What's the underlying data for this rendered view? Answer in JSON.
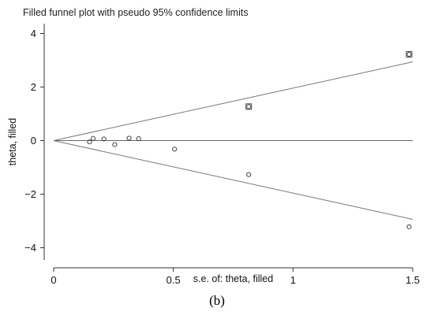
{
  "chart_data": {
    "type": "scatter",
    "title": "Filled funnel plot with pseudo 95% confidence limits",
    "xlabel": "s.e. of: theta, filled",
    "ylabel": "theta, filled",
    "panel_label": "(b)",
    "xlim": [
      0,
      1.5
    ],
    "ylim": [
      -4.2,
      4.2
    ],
    "x_ticks": [
      0,
      0.5,
      1,
      1.5
    ],
    "x_tick_labels": [
      "0",
      "0.5",
      "1",
      "1.5"
    ],
    "y_ticks": [
      -4,
      -2,
      0,
      2,
      4
    ],
    "y_tick_labels": [
      "−4",
      "−2",
      "0",
      "2",
      "4"
    ],
    "pooled_estimate": 0,
    "confidence_limit_multiplier": 1.96,
    "series": [
      {
        "marker": "circle",
        "points": [
          {
            "x": 0.15,
            "y": -0.05
          },
          {
            "x": 0.165,
            "y": 0.08
          },
          {
            "x": 0.21,
            "y": 0.06
          },
          {
            "x": 0.255,
            "y": -0.15
          },
          {
            "x": 0.315,
            "y": 0.09
          },
          {
            "x": 0.355,
            "y": 0.07
          },
          {
            "x": 0.505,
            "y": -0.32
          },
          {
            "x": 0.815,
            "y": -1.27
          },
          {
            "x": 1.485,
            "y": -3.22
          }
        ]
      },
      {
        "marker": "circle-in-square",
        "points": [
          {
            "x": 0.815,
            "y": 1.27
          },
          {
            "x": 1.485,
            "y": 3.22
          }
        ]
      }
    ]
  }
}
